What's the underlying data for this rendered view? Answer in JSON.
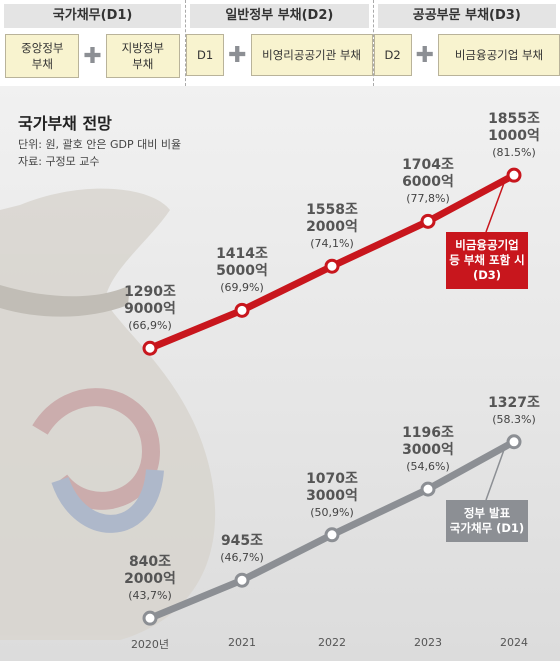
{
  "header": {
    "groups": [
      {
        "title": "국가채무(D1)",
        "parts": [
          "중앙정부 부채",
          "지방정부 부채"
        ]
      },
      {
        "title": "일반정부 부채(D2)",
        "parts": [
          "D1",
          "비영리공공기관 부채"
        ]
      },
      {
        "title": "공공부문 부채(D3)",
        "parts": [
          "D2",
          "비금융공기업 부채"
        ]
      }
    ]
  },
  "chart_data": {
    "type": "line",
    "title": "국가부채 전망",
    "subtitle": "단위: 원, 괄호 안은 GDP 대비 비율",
    "source": "자료: 구정모 교수",
    "categories": [
      "2020년",
      "2021",
      "2022",
      "2023",
      "2024"
    ],
    "ylim": [
      340,
      2100
    ],
    "y2lim": [
      780,
      2270
    ],
    "series": [
      {
        "name": "비금융공기업 등 부채 포함 시 (D3)",
        "color": "#c8161d",
        "values": [
          1290.9,
          1414.5,
          1558.2,
          1704.6,
          1855.1
        ],
        "value_labels": [
          "1290조 9000억",
          "1414조 5000억",
          "1558조 2000억",
          "1704조 6000억",
          "1855조 1000억"
        ],
        "gdp_ratio": [
          66.9,
          69.9,
          74.1,
          77.8,
          81.5
        ],
        "gdp_ratio_labels": [
          "(66,9%)",
          "(69,9%)",
          "(74,1%)",
          "(77,8%)",
          "(81.5%)"
        ]
      },
      {
        "name": "정부 발표 국가채무 (D1)",
        "color": "#8c8f94",
        "axis": "y2",
        "values": [
          840.2,
          945,
          1070.3,
          1196.3,
          1327
        ],
        "value_labels": [
          "840조 2000억",
          "945조",
          "1070조 3000억",
          "1196조 3000억",
          "1327조"
        ],
        "gdp_ratio": [
          43.7,
          46.7,
          50.9,
          54.6,
          58.3
        ],
        "gdp_ratio_labels": [
          "(43,7%)",
          "(46,7%)",
          "(50,9%)",
          "(54,6%)",
          "(58.3%)"
        ]
      }
    ]
  }
}
